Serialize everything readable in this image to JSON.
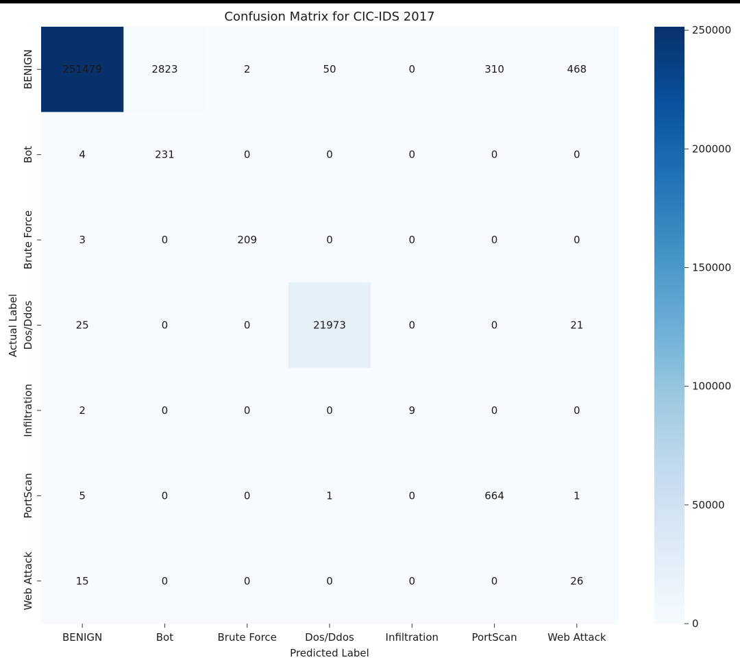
{
  "chart_data": {
    "type": "heatmap",
    "title": "Confusion Matrix for CIC-IDS 2017",
    "xlabel": "Predicted Label",
    "ylabel": "Actual Label",
    "x_categories": [
      "BENIGN",
      "Bot",
      "Brute Force",
      "Dos/Ddos",
      "Infiltration",
      "PortScan",
      "Web Attack"
    ],
    "y_categories": [
      "BENIGN",
      "Bot",
      "Brute Force",
      "Dos/Ddos",
      "Infiltration",
      "PortScan",
      "Web Attack"
    ],
    "matrix": [
      [
        251479,
        2823,
        2,
        50,
        0,
        310,
        468
      ],
      [
        4,
        231,
        0,
        0,
        0,
        0,
        0
      ],
      [
        3,
        0,
        209,
        0,
        0,
        0,
        0
      ],
      [
        25,
        0,
        0,
        21973,
        0,
        0,
        21
      ],
      [
        2,
        0,
        0,
        0,
        9,
        0,
        0
      ],
      [
        5,
        0,
        0,
        1,
        0,
        664,
        1
      ],
      [
        15,
        0,
        0,
        0,
        0,
        0,
        26
      ]
    ],
    "colormap": "Blues",
    "color_range": [
      0,
      251479
    ],
    "colorbar_ticks": [
      0,
      50000,
      100000,
      150000,
      200000,
      250000
    ],
    "colormap_stops": [
      "#f7fbff",
      "#deebf7",
      "#c6dbef",
      "#9ecae1",
      "#6baed6",
      "#4292c6",
      "#2171b5",
      "#08519c",
      "#08306b"
    ]
  }
}
